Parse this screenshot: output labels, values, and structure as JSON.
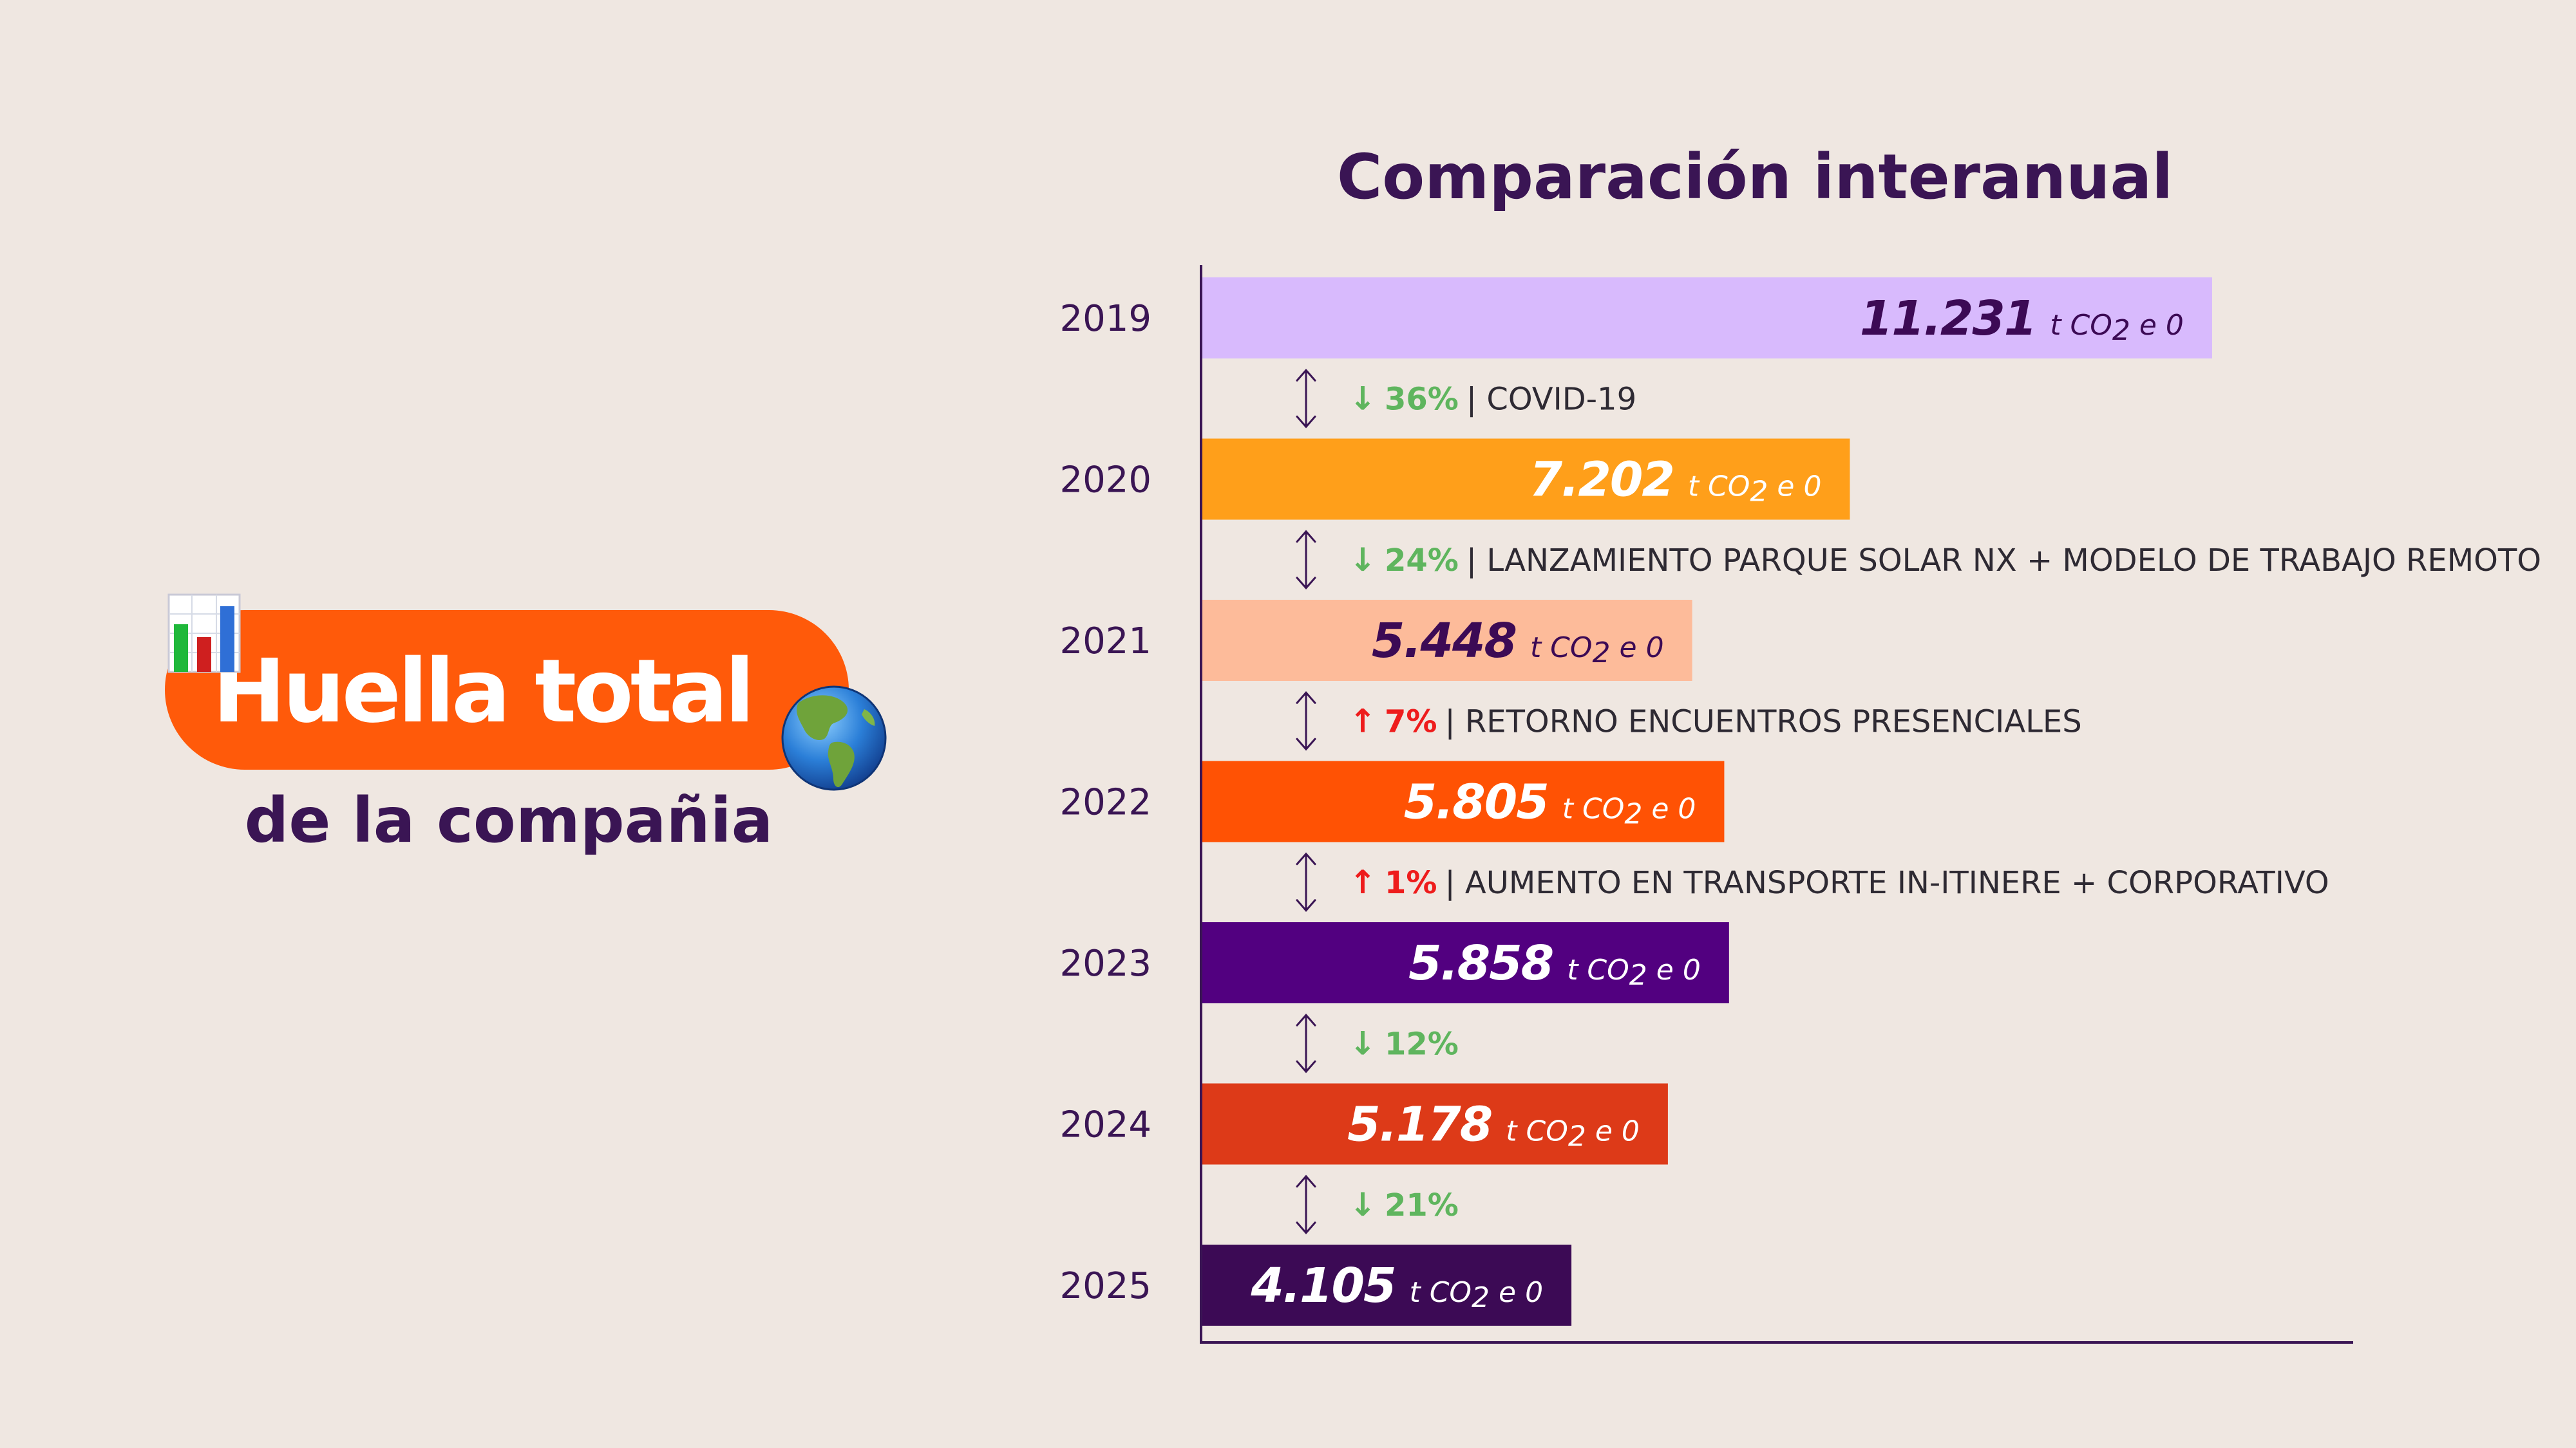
{
  "headline": {
    "title": "Huella total",
    "subtitle": "de la compañia",
    "pill_color": "#ff5a0a",
    "icons": [
      "bar-chart-icon",
      "globe-americas-icon"
    ]
  },
  "chart_data": {
    "type": "bar",
    "orientation": "horizontal",
    "title": "Comparación interanual",
    "unit_prefix": "t CO",
    "unit_subscript": "2",
    "unit_suffix": " e 0",
    "categories": [
      "2019",
      "2020",
      "2021",
      "2022",
      "2023",
      "2024",
      "2025"
    ],
    "values": [
      11231,
      7202,
      5448,
      5805,
      5858,
      5178,
      4105
    ],
    "value_labels": [
      "11.231",
      "7.202",
      "5.448",
      "5.805",
      "5.858",
      "5.178",
      "4.105"
    ],
    "xlim": [
      0,
      12800
    ],
    "bar_colors": [
      "#d8bafd",
      "#ff9f1a",
      "#fdbb9a",
      "#ff5204",
      "#520080",
      "#dd3a18",
      "#3c0a55"
    ],
    "label_colors": [
      "#3c0a55",
      "#ffffff",
      "#3c0a55",
      "#ffffff",
      "#ffffff",
      "#ffffff",
      "#ffffff"
    ],
    "changes": [
      {
        "direction": "down",
        "percent": "36%",
        "reason": "| COVID-19"
      },
      {
        "direction": "down",
        "percent": "24%",
        "reason": "| LANZAMIENTO PARQUE SOLAR NX + MODELO DE TRABAJO REMOTO"
      },
      {
        "direction": "up",
        "percent": "7%",
        "reason": "| RETORNO ENCUENTROS PRESENCIALES"
      },
      {
        "direction": "up",
        "percent": "1%",
        "reason": "| AUMENTO EN TRANSPORTE IN-ITINERE + CORPORATIVO"
      },
      {
        "direction": "down",
        "percent": "12%",
        "reason": ""
      },
      {
        "direction": "down",
        "percent": "21%",
        "reason": ""
      }
    ],
    "colors": {
      "decrease": "#5fb55e",
      "increase": "#ee1c1c",
      "axis": "#3a1554",
      "text": "#3a1554"
    },
    "grid": false,
    "legend": "none"
  }
}
